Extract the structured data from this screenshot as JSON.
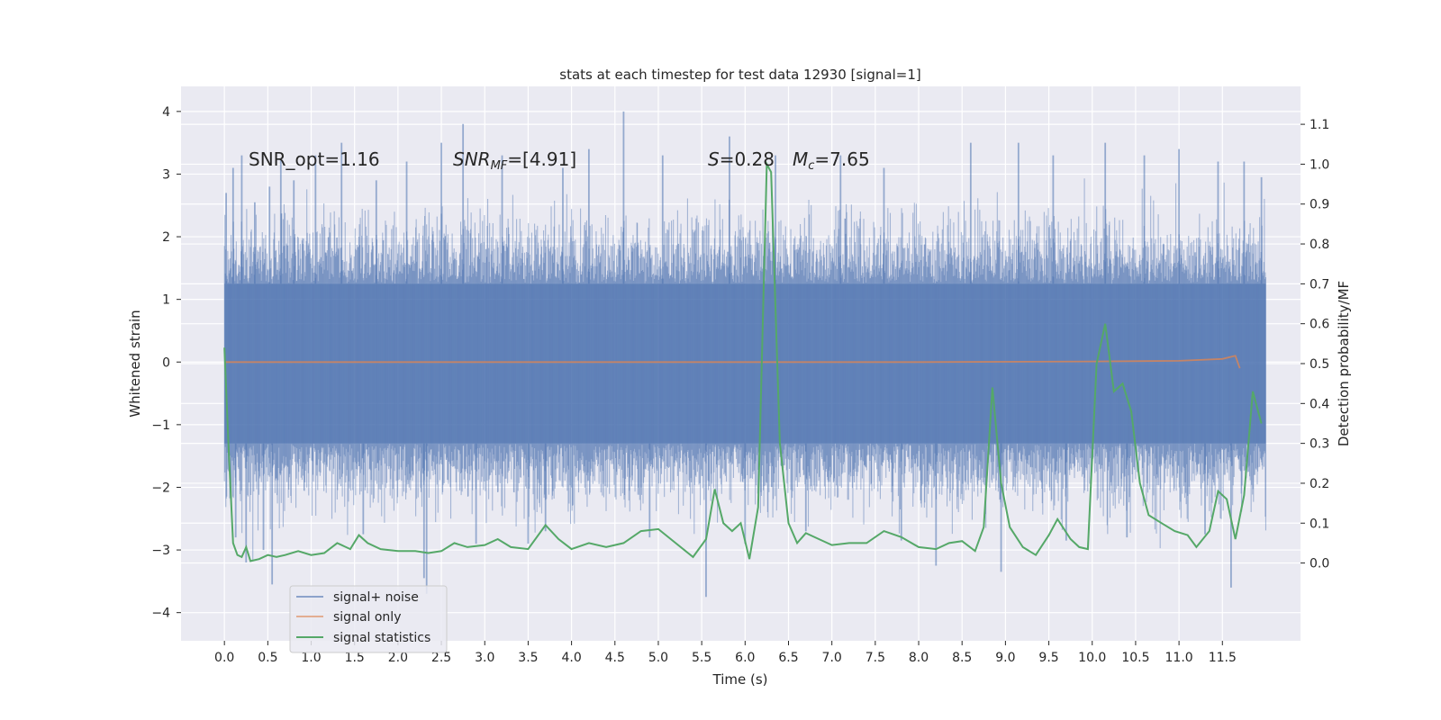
{
  "chart_data": {
    "type": "line",
    "title": "stats at each timestep for test data 12930 [signal=1]",
    "xlabel": "Time (s)",
    "ylabel": "Whitened strain",
    "y2label": "Detection probability/MF",
    "xlim": [
      -0.5,
      12.4
    ],
    "ylim": [
      -4.45,
      4.4
    ],
    "y2lim": [
      -0.195,
      1.195
    ],
    "x_ticks": [
      "0.0",
      "0.5",
      "1.0",
      "1.5",
      "2.0",
      "2.5",
      "3.0",
      "3.5",
      "4.0",
      "4.5",
      "5.0",
      "5.5",
      "6.0",
      "6.5",
      "7.0",
      "7.5",
      "8.0",
      "8.5",
      "9.0",
      "9.5",
      "10.0",
      "10.5",
      "11.0",
      "11.5"
    ],
    "y_ticks": [
      "−4",
      "−3",
      "−2",
      "−1",
      "0",
      "1",
      "2",
      "3",
      "4"
    ],
    "y2_ticks": [
      "0.0",
      "0.1",
      "0.2",
      "0.3",
      "0.4",
      "0.5",
      "0.6",
      "0.7",
      "0.8",
      "0.9",
      "1.0",
      "1.1"
    ],
    "grid": true,
    "legend_position": "lower-left",
    "annotations": {
      "snr_opt": "SNR_opt=1.16",
      "snr_mf_main": "SNR",
      "snr_mf_sub": "MF",
      "snr_mf_rest": "=[4.91]",
      "s_sym": "S",
      "s_val": "=0.28",
      "mc_sym": "M",
      "mc_sub": "c",
      "mc_val": "=7.65"
    },
    "series": [
      {
        "name": "signal+ noise",
        "color": "#4c72b0",
        "noise_envelope": {
          "x_start": 0.0,
          "x_end": 12.0,
          "core_low": -1.3,
          "core_high": 1.25,
          "typical_low": -2.2,
          "typical_high": 2.2
        },
        "spikes": [
          {
            "x": 0.02,
            "y": 2.7
          },
          {
            "x": 0.1,
            "y": 3.1
          },
          {
            "x": 0.13,
            "y": -2.8
          },
          {
            "x": 0.2,
            "y": 3.3
          },
          {
            "x": 0.25,
            "y": -3.2
          },
          {
            "x": 0.45,
            "y": -3.0
          },
          {
            "x": 0.52,
            "y": 2.8
          },
          {
            "x": 0.55,
            "y": -3.55
          },
          {
            "x": 0.65,
            "y": 3.25
          },
          {
            "x": 0.8,
            "y": 2.9
          },
          {
            "x": 1.05,
            "y": 3.3
          },
          {
            "x": 1.35,
            "y": 3.5
          },
          {
            "x": 1.75,
            "y": 2.9
          },
          {
            "x": 2.1,
            "y": 3.2
          },
          {
            "x": 2.3,
            "y": -3.45
          },
          {
            "x": 2.33,
            "y": -3.7
          },
          {
            "x": 2.5,
            "y": 3.5
          },
          {
            "x": 2.75,
            "y": 3.8
          },
          {
            "x": 2.9,
            "y": -2.9
          },
          {
            "x": 3.2,
            "y": 3.3
          },
          {
            "x": 3.5,
            "y": -2.9
          },
          {
            "x": 3.9,
            "y": 3.1
          },
          {
            "x": 4.2,
            "y": 3.4
          },
          {
            "x": 4.6,
            "y": 4.0
          },
          {
            "x": 5.05,
            "y": 3.3
          },
          {
            "x": 5.55,
            "y": -3.75
          },
          {
            "x": 5.82,
            "y": 3.6
          },
          {
            "x": 6.35,
            "y": 3.3
          },
          {
            "x": 7.1,
            "y": 3.3
          },
          {
            "x": 7.6,
            "y": 3.1
          },
          {
            "x": 8.2,
            "y": -3.25
          },
          {
            "x": 8.6,
            "y": 3.5
          },
          {
            "x": 8.95,
            "y": -3.35
          },
          {
            "x": 9.15,
            "y": 3.5
          },
          {
            "x": 9.55,
            "y": 3.3
          },
          {
            "x": 10.15,
            "y": 3.5
          },
          {
            "x": 10.6,
            "y": 3.3
          },
          {
            "x": 11.0,
            "y": 3.4
          },
          {
            "x": 11.45,
            "y": 3.2
          },
          {
            "x": 11.6,
            "y": -3.6
          },
          {
            "x": 11.75,
            "y": 3.2
          },
          {
            "x": 11.95,
            "y": 2.95
          },
          {
            "x": 0.35,
            "y": 2.55
          },
          {
            "x": 1.6,
            "y": -2.75
          },
          {
            "x": 3.7,
            "y": -2.7
          },
          {
            "x": 4.9,
            "y": -2.8
          },
          {
            "x": 6.7,
            "y": -2.7
          },
          {
            "x": 7.8,
            "y": -2.85
          },
          {
            "x": 9.7,
            "y": -2.85
          },
          {
            "x": 10.4,
            "y": -2.8
          },
          {
            "x": 11.3,
            "y": -2.75
          },
          {
            "x": 6.0,
            "y": -2.9
          }
        ]
      },
      {
        "name": "signal only",
        "color": "#dd8452",
        "x": [
          0.0,
          8.0,
          10.0,
          11.0,
          11.5,
          11.65,
          11.7
        ],
        "y": [
          0.0,
          0.0,
          0.01,
          0.02,
          0.05,
          0.1,
          -0.1
        ]
      },
      {
        "name": "signal statistics",
        "color": "#55a868",
        "axis": "right",
        "x": [
          0.0,
          0.05,
          0.1,
          0.15,
          0.2,
          0.25,
          0.3,
          0.4,
          0.5,
          0.6,
          0.7,
          0.85,
          1.0,
          1.15,
          1.3,
          1.45,
          1.55,
          1.65,
          1.8,
          2.0,
          2.2,
          2.35,
          2.5,
          2.65,
          2.8,
          3.0,
          3.15,
          3.3,
          3.5,
          3.7,
          3.85,
          4.0,
          4.2,
          4.4,
          4.6,
          4.8,
          5.0,
          5.2,
          5.4,
          5.55,
          5.65,
          5.75,
          5.85,
          5.95,
          6.05,
          6.15,
          6.25,
          6.3,
          6.4,
          6.5,
          6.6,
          6.7,
          6.85,
          7.0,
          7.2,
          7.4,
          7.6,
          7.8,
          8.0,
          8.2,
          8.35,
          8.5,
          8.65,
          8.75,
          8.85,
          8.95,
          9.05,
          9.2,
          9.35,
          9.5,
          9.6,
          9.75,
          9.85,
          9.95,
          10.05,
          10.15,
          10.25,
          10.35,
          10.45,
          10.55,
          10.65,
          10.8,
          10.95,
          11.1,
          11.2,
          11.35,
          11.45,
          11.55,
          11.65,
          11.75,
          11.85,
          11.95
        ],
        "y": [
          0.54,
          0.28,
          0.05,
          0.02,
          0.015,
          0.04,
          0.005,
          0.01,
          0.02,
          0.015,
          0.02,
          0.03,
          0.02,
          0.025,
          0.05,
          0.035,
          0.07,
          0.05,
          0.035,
          0.03,
          0.03,
          0.025,
          0.03,
          0.05,
          0.04,
          0.045,
          0.06,
          0.04,
          0.035,
          0.095,
          0.06,
          0.035,
          0.05,
          0.04,
          0.05,
          0.08,
          0.085,
          0.05,
          0.015,
          0.06,
          0.185,
          0.1,
          0.08,
          0.1,
          0.01,
          0.14,
          1.0,
          0.98,
          0.3,
          0.1,
          0.05,
          0.075,
          0.06,
          0.045,
          0.05,
          0.05,
          0.08,
          0.065,
          0.04,
          0.035,
          0.05,
          0.055,
          0.03,
          0.09,
          0.44,
          0.2,
          0.09,
          0.04,
          0.02,
          0.07,
          0.11,
          0.06,
          0.04,
          0.035,
          0.5,
          0.6,
          0.43,
          0.45,
          0.38,
          0.2,
          0.12,
          0.1,
          0.08,
          0.07,
          0.04,
          0.08,
          0.18,
          0.16,
          0.06,
          0.17,
          0.43,
          0.35
        ]
      }
    ]
  }
}
